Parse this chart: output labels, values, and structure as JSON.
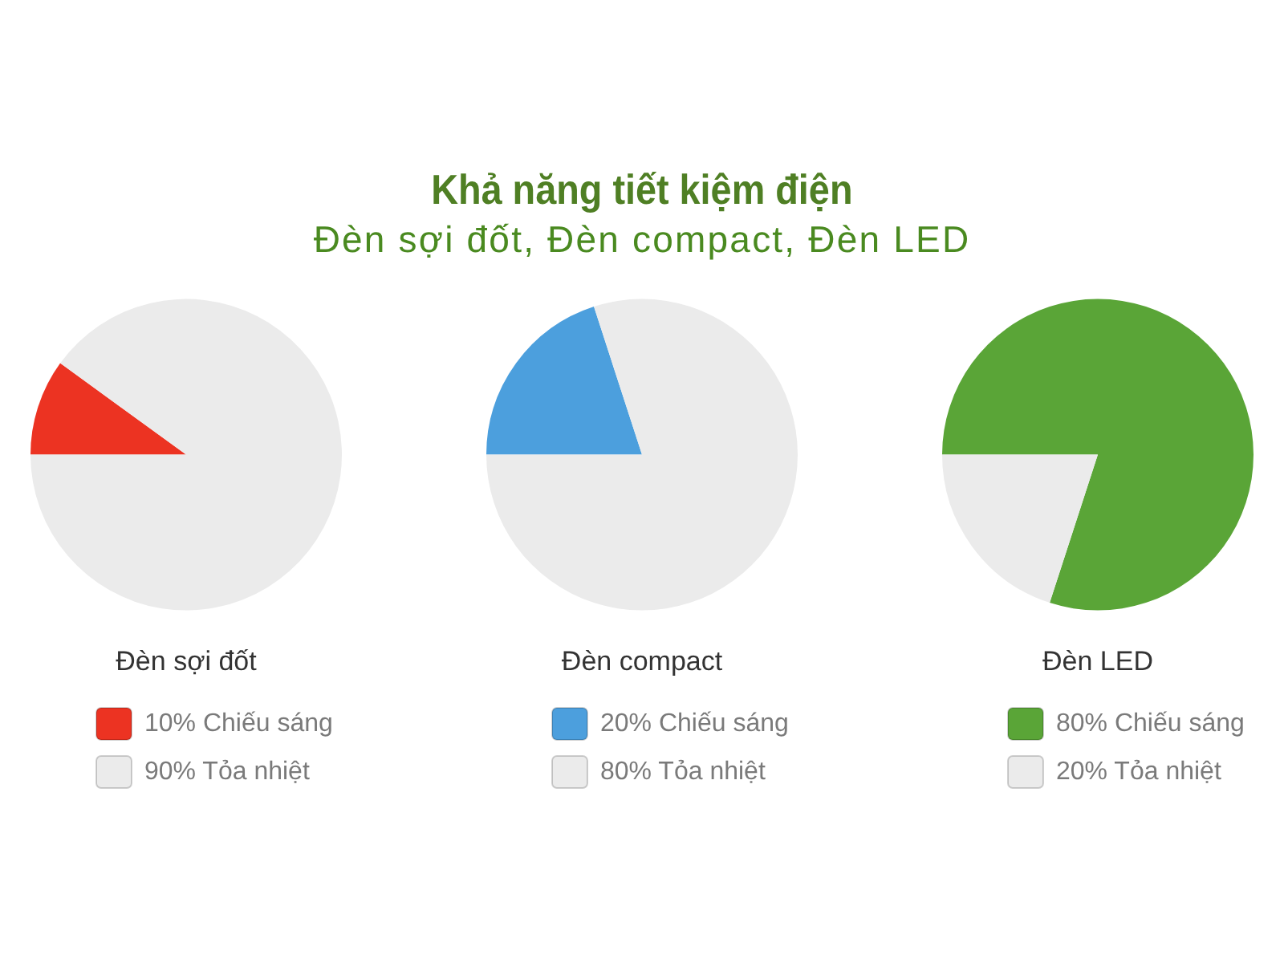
{
  "chart_data": [
    {
      "type": "other",
      "title": "Khả năng tiết kiệm điện",
      "subtitle": "Đèn sợi đốt, Đèn compact, Đèn LED"
    },
    {
      "type": "pie",
      "title": "Đèn sợi đốt",
      "categories": [
        "Chiếu sáng",
        "Tỏa nhiệt"
      ],
      "values": [
        10,
        90
      ],
      "colors": [
        "#ec3322",
        "#ebebeb"
      ],
      "value_labels": [
        "10%",
        "90%"
      ],
      "legend": "bottom"
    },
    {
      "type": "pie",
      "title": "Đèn compact",
      "categories": [
        "Chiếu sáng",
        "Tỏa nhiệt"
      ],
      "values": [
        20,
        80
      ],
      "colors": [
        "#4c9fdd",
        "#ebebeb"
      ],
      "value_labels": [
        "20%",
        "80%"
      ],
      "legend": "bottom"
    },
    {
      "type": "pie",
      "title": "Đèn LED",
      "categories": [
        "Chiếu sáng",
        "Tỏa nhiệt"
      ],
      "values": [
        80,
        20
      ],
      "colors": [
        "#5aa537",
        "#ebebeb"
      ],
      "value_labels": [
        "80%",
        "20%"
      ],
      "legend": "bottom"
    }
  ]
}
